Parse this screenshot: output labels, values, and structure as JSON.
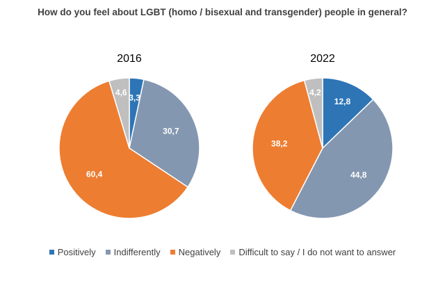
{
  "chart_title": "How do you feel about LGBT (homo / bisexual and transgender) people in general?",
  "chart_data": [
    {
      "type": "pie",
      "title": "2016",
      "categories": [
        "Positively",
        "Indifferently",
        "Negatively",
        "Difficult to say / I do not want to answer"
      ],
      "values": [
        3.3,
        30.7,
        60.4,
        4.6
      ],
      "labels": [
        "3,3",
        "30,7",
        "60,4",
        "4,6"
      ],
      "colors": [
        "#2e75b6",
        "#8497b0",
        "#ed7d31",
        "#bfbfbf"
      ],
      "label_colors": [
        "#ffffff",
        "#ffffff",
        "#ffffff",
        "#ffffff"
      ]
    },
    {
      "type": "pie",
      "title": "2022",
      "categories": [
        "Positively",
        "Indifferently",
        "Negatively",
        "Difficult to say / I do not want to answer"
      ],
      "values": [
        12.8,
        44.8,
        38.2,
        4.2
      ],
      "labels": [
        "12,8",
        "44,8",
        "38,2",
        "4,2"
      ],
      "colors": [
        "#2e75b6",
        "#8497b0",
        "#ed7d31",
        "#bfbfbf"
      ],
      "label_colors": [
        "#ffffff",
        "#ffffff",
        "#ffffff",
        "#ffffff"
      ]
    }
  ],
  "legend": [
    {
      "label": "Positively",
      "color": "#2e75b6"
    },
    {
      "label": "Indifferently",
      "color": "#8497b0"
    },
    {
      "label": "Negatively",
      "color": "#ed7d31"
    },
    {
      "label": "Difficult to say / I do not want to answer",
      "color": "#bfbfbf"
    }
  ]
}
